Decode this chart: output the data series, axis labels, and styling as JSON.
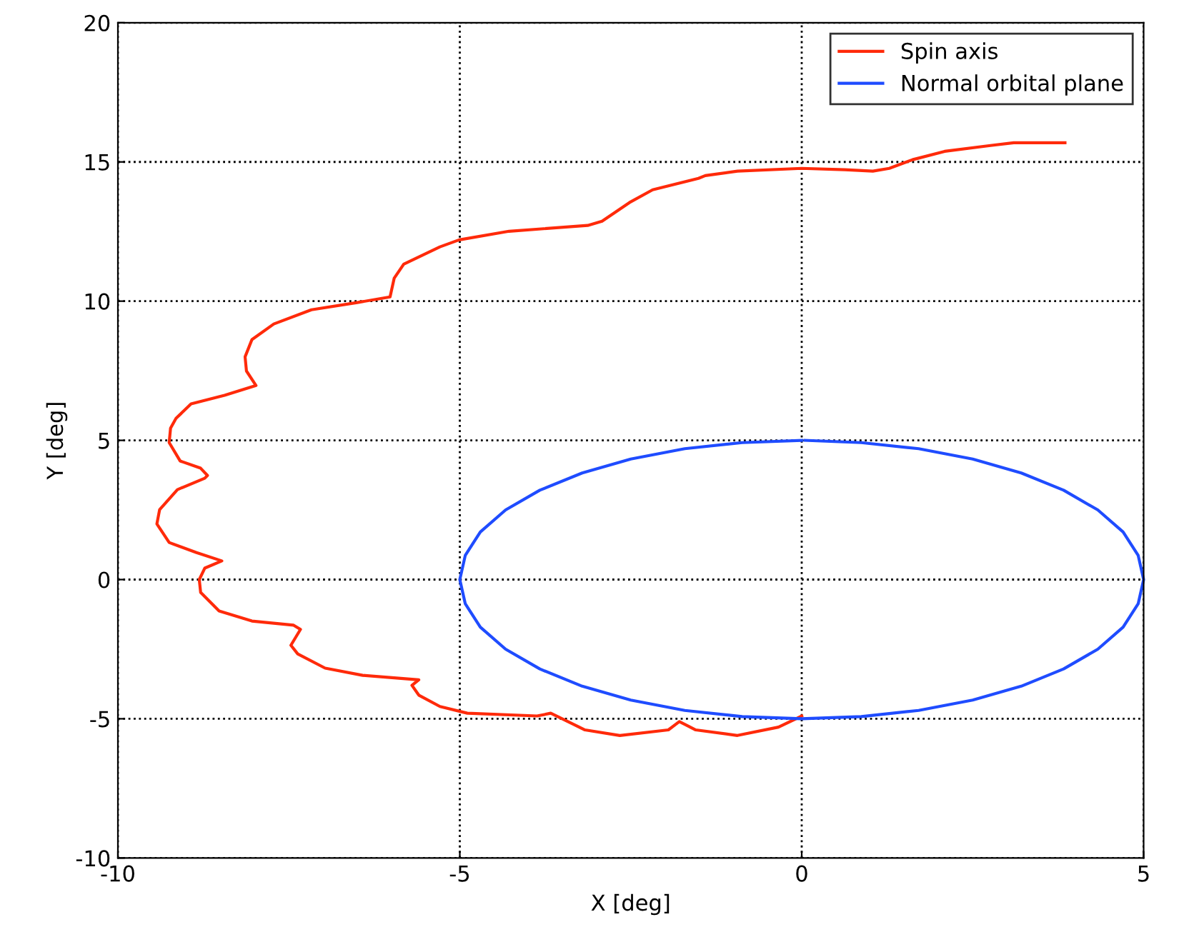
{
  "chart_data": {
    "type": "line",
    "xlabel": "X [deg]",
    "ylabel": "Y [deg]",
    "xlim": [
      -10,
      5
    ],
    "ylim": [
      -10,
      20
    ],
    "xticks": [
      -10,
      -5,
      0,
      5
    ],
    "yticks": [
      -10,
      -5,
      0,
      5,
      10,
      15,
      20
    ],
    "grid": true,
    "legend": "top right",
    "line_style": "solid",
    "marker": "none",
    "series": [
      {
        "name": "Spin axis",
        "color": "#ff2a0a",
        "x": [
          0.0,
          -0.34,
          -0.94,
          -1.55,
          -1.79,
          -1.95,
          -2.66,
          -3.17,
          -3.67,
          -3.87,
          -4.89,
          -5.29,
          -5.6,
          -5.7,
          -5.6,
          -6.42,
          -6.97,
          -7.37,
          -7.47,
          -7.33,
          -7.43,
          -8.04,
          -8.52,
          -8.79,
          -8.81,
          -8.73,
          -8.48,
          -8.85,
          -9.25,
          -9.43,
          -9.39,
          -9.13,
          -8.73,
          -8.69,
          -8.79,
          -9.09,
          -9.25,
          -9.23,
          -9.15,
          -8.93,
          -8.44,
          -7.98,
          -8.12,
          -8.14,
          -8.04,
          -7.72,
          -7.17,
          -6.5,
          -6.02,
          -5.96,
          -5.82,
          -5.29,
          -5.01,
          -4.28,
          -3.13,
          -2.92,
          -2.52,
          -2.18,
          -1.51,
          -1.41,
          -0.94,
          0.0,
          0.63,
          1.04,
          1.28,
          1.62,
          2.09,
          2.76,
          3.1,
          3.85
        ],
        "values": [
          -4.9,
          -5.3,
          -5.6,
          -5.4,
          -5.1,
          -5.4,
          -5.6,
          -5.4,
          -4.8,
          -4.9,
          -4.8,
          -4.56,
          -4.15,
          -3.8,
          -3.6,
          -3.44,
          -3.18,
          -2.67,
          -2.36,
          -1.79,
          -1.64,
          -1.49,
          -1.13,
          -0.46,
          0.0,
          0.41,
          0.67,
          0.97,
          1.33,
          2.0,
          2.51,
          3.23,
          3.64,
          3.74,
          4.0,
          4.26,
          4.92,
          5.44,
          5.79,
          6.31,
          6.62,
          6.97,
          7.49,
          8.0,
          8.62,
          9.18,
          9.69,
          9.95,
          10.15,
          10.82,
          11.33,
          11.95,
          12.2,
          12.51,
          12.72,
          12.87,
          13.54,
          14.0,
          14.41,
          14.51,
          14.67,
          14.77,
          14.72,
          14.67,
          14.77,
          15.08,
          15.38,
          15.59,
          15.69,
          15.69
        ]
      },
      {
        "name": "Normal orbital plane",
        "color": "#1f4cff",
        "x": [
          0,
          -0.87,
          -1.71,
          -2.5,
          -3.21,
          -3.83,
          -4.33,
          -4.7,
          -4.92,
          -5,
          -4.92,
          -4.7,
          -4.33,
          -3.83,
          -3.21,
          -2.5,
          -1.71,
          -0.87,
          0,
          0.87,
          1.71,
          2.5,
          3.21,
          3.83,
          4.33,
          4.7,
          4.92,
          5,
          4.92,
          4.7,
          4.33,
          3.83,
          3.21,
          2.5,
          1.71,
          0.87,
          0.05
        ],
        "values": [
          5,
          4.92,
          4.7,
          4.33,
          3.83,
          3.21,
          2.5,
          1.71,
          0.87,
          0,
          -0.87,
          -1.71,
          -2.5,
          -3.21,
          -3.83,
          -4.33,
          -4.7,
          -4.92,
          -5,
          -4.92,
          -4.7,
          -4.33,
          -3.83,
          -3.21,
          -2.5,
          -1.71,
          -0.87,
          0,
          0.87,
          1.71,
          2.5,
          3.21,
          3.83,
          4.33,
          4.7,
          4.92,
          5
        ]
      }
    ]
  }
}
